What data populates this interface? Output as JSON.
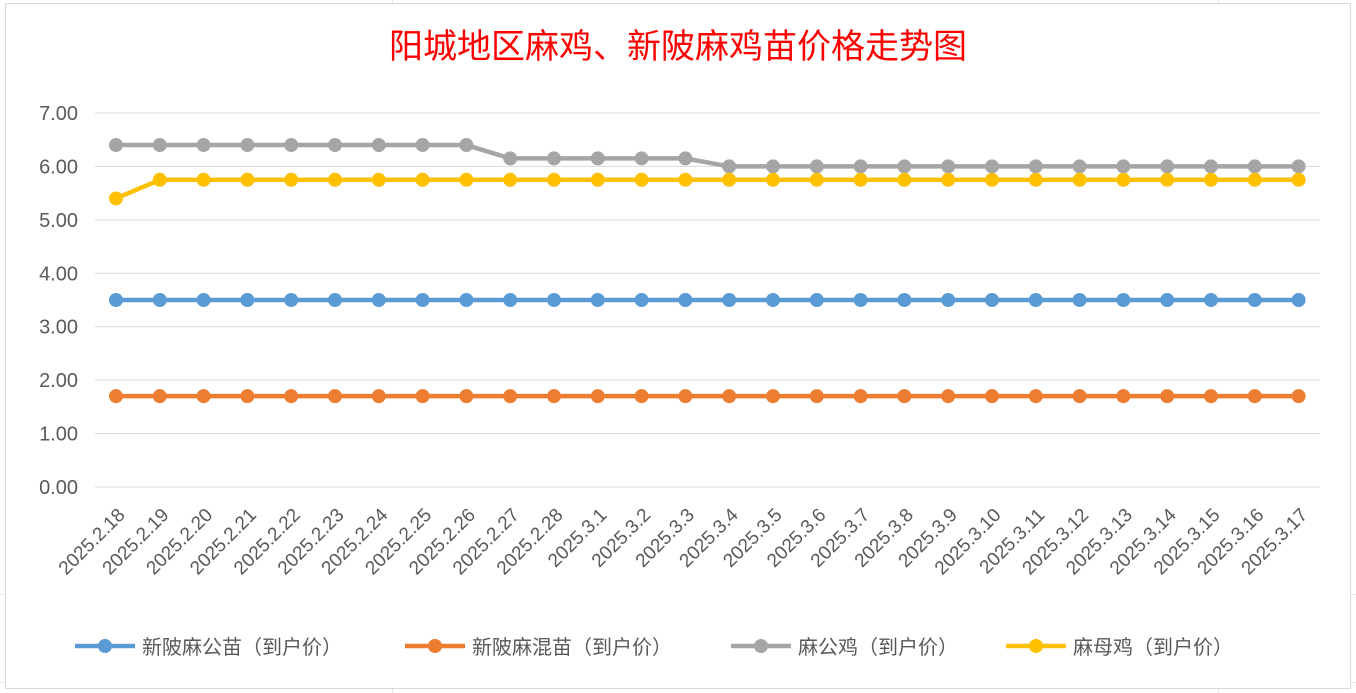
{
  "chart_data": {
    "type": "line",
    "title": "阳城地区麻鸡、新陂麻鸡苗价格走势图",
    "xlabel": "",
    "ylabel": "",
    "ylim": [
      0,
      7
    ],
    "yticks": [
      "0.00",
      "1.00",
      "2.00",
      "3.00",
      "4.00",
      "5.00",
      "6.00",
      "7.00"
    ],
    "grid": true,
    "legend_position": "bottom",
    "categories": [
      "2025.2.18",
      "2025.2.19",
      "2025.2.20",
      "2025.2.21",
      "2025.2.22",
      "2025.2.23",
      "2025.2.24",
      "2025.2.25",
      "2025.2.26",
      "2025.2.27",
      "2025.2.28",
      "2025.3.1",
      "2025.3.2",
      "2025.3.3",
      "2025.3.4",
      "2025.3.5",
      "2025.3.6",
      "2025.3.7",
      "2025.3.8",
      "2025.3.9",
      "2025.3.10",
      "2025.3.11",
      "2025.3.12",
      "2025.3.13",
      "2025.3.14",
      "2025.3.15",
      "2025.3.16",
      "2025.3.17"
    ],
    "series": [
      {
        "name": "新陂麻公苗（到户价）",
        "color": "#5b9bd5",
        "values": [
          3.5,
          3.5,
          3.5,
          3.5,
          3.5,
          3.5,
          3.5,
          3.5,
          3.5,
          3.5,
          3.5,
          3.5,
          3.5,
          3.5,
          3.5,
          3.5,
          3.5,
          3.5,
          3.5,
          3.5,
          3.5,
          3.5,
          3.5,
          3.5,
          3.5,
          3.5,
          3.5,
          3.5
        ]
      },
      {
        "name": "新陂麻混苗（到户价）",
        "color": "#ed7d31",
        "values": [
          1.7,
          1.7,
          1.7,
          1.7,
          1.7,
          1.7,
          1.7,
          1.7,
          1.7,
          1.7,
          1.7,
          1.7,
          1.7,
          1.7,
          1.7,
          1.7,
          1.7,
          1.7,
          1.7,
          1.7,
          1.7,
          1.7,
          1.7,
          1.7,
          1.7,
          1.7,
          1.7,
          1.7
        ]
      },
      {
        "name": "麻公鸡（到户价）",
        "color": "#a5a5a5",
        "values": [
          6.4,
          6.4,
          6.4,
          6.4,
          6.4,
          6.4,
          6.4,
          6.4,
          6.4,
          6.15,
          6.15,
          6.15,
          6.15,
          6.15,
          6.0,
          6.0,
          6.0,
          6.0,
          6.0,
          6.0,
          6.0,
          6.0,
          6.0,
          6.0,
          6.0,
          6.0,
          6.0,
          6.0
        ]
      },
      {
        "name": "麻母鸡（到户价）",
        "color": "#ffc000",
        "values": [
          5.4,
          5.75,
          5.75,
          5.75,
          5.75,
          5.75,
          5.75,
          5.75,
          5.75,
          5.75,
          5.75,
          5.75,
          5.75,
          5.75,
          5.75,
          5.75,
          5.75,
          5.75,
          5.75,
          5.75,
          5.75,
          5.75,
          5.75,
          5.75,
          5.75,
          5.75,
          5.75,
          5.75
        ]
      }
    ]
  }
}
